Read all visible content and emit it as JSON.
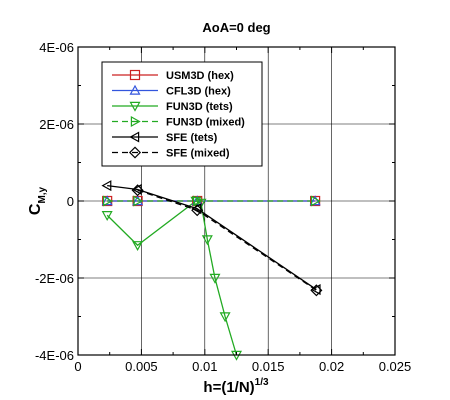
{
  "chart_data": {
    "type": "line",
    "title": "AoA=0 deg",
    "xlabel": {
      "main": "h=(1/N)",
      "sup": "1/3"
    },
    "ylabel": {
      "main": "C",
      "sub": "M,y"
    },
    "xlim": [
      0,
      0.025
    ],
    "ylim": [
      -4e-06,
      4e-06
    ],
    "xticks": [
      0,
      0.005,
      0.01,
      0.015,
      0.02,
      0.025
    ],
    "xtick_labels": [
      "0",
      "0.005",
      "0.01",
      "0.015",
      "0.02",
      "0.025"
    ],
    "yticks": [
      -4e-06,
      -2e-06,
      0,
      2e-06,
      4e-06
    ],
    "ytick_labels": [
      "-4E-06",
      "-2E-06",
      "0",
      "2E-06",
      "4E-06"
    ],
    "grid": true,
    "legend_position": "top-left",
    "series": [
      {
        "name": "USM3D (hex)",
        "color": "#cc2222",
        "marker": "square",
        "dash": "solid",
        "x": [
          0.0023,
          0.0047,
          0.0094,
          0.0187
        ],
        "y": [
          0,
          0,
          0,
          0
        ]
      },
      {
        "name": "CFL3D (hex)",
        "color": "#3355dd",
        "marker": "triangle-up",
        "dash": "solid",
        "x": [
          0.0023,
          0.0047,
          0.0094,
          0.0187
        ],
        "y": [
          0,
          0,
          0,
          0
        ]
      },
      {
        "name": "FUN3D (tets)",
        "color": "#22aa22",
        "marker": "triangle-down",
        "dash": "solid",
        "x": [
          0.0023,
          0.0047,
          0.0093,
          0.0097,
          0.0102,
          0.0108,
          0.0116,
          0.0125
        ],
        "y": [
          -3.7e-07,
          -1.15e-06,
          0,
          -5e-08,
          -1e-06,
          -2e-06,
          -3e-06,
          -4e-06
        ]
      },
      {
        "name": "FUN3D (mixed)",
        "color": "#22aa22",
        "marker": "triangle-right",
        "dash": "dashed",
        "x": [
          0.0023,
          0.0047,
          0.0094,
          0.0187
        ],
        "y": [
          0,
          0,
          0,
          0
        ]
      },
      {
        "name": "SFE (tets)",
        "color": "#000000",
        "marker": "triangle-left",
        "dash": "solid",
        "x": [
          0.0023,
          0.0047,
          0.0094,
          0.0188
        ],
        "y": [
          4e-07,
          3e-07,
          -2e-07,
          -2.3e-06
        ]
      },
      {
        "name": "SFE (mixed)",
        "color": "#000000",
        "marker": "diamond",
        "dash": "dashed",
        "x": [
          0.0047,
          0.0094,
          0.0188
        ],
        "y": [
          2.8e-07,
          -2.4e-07,
          -2.32e-06
        ]
      }
    ]
  }
}
